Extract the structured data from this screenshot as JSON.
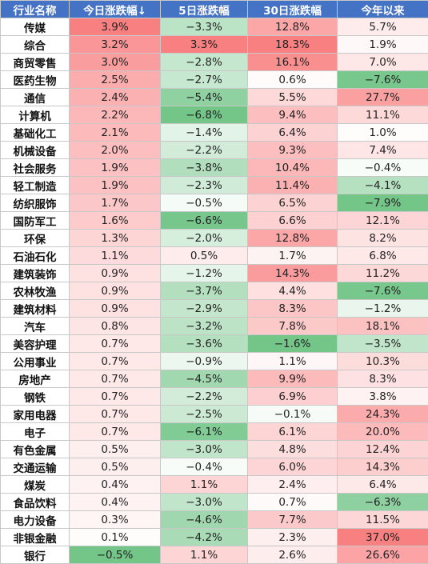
{
  "headers": [
    "行业名称",
    "今日涨跌幅↓",
    "5日涨跌幅",
    "30日涨跌幅",
    "今年以来"
  ],
  "rows": [
    [
      "传媒",
      "3.9%",
      "−3.3%",
      "12.8%",
      "5.7%"
    ],
    [
      "综合",
      "3.2%",
      "3.3%",
      "18.3%",
      "1.9%"
    ],
    [
      "商贸零售",
      "3.0%",
      "−2.8%",
      "16.1%",
      "7.0%"
    ],
    [
      "医药生物",
      "2.5%",
      "−2.7%",
      "0.6%",
      "−7.6%"
    ],
    [
      "通信",
      "2.4%",
      "−5.4%",
      "5.5%",
      "27.7%"
    ],
    [
      "计算机",
      "2.2%",
      "−6.8%",
      "9.4%",
      "11.1%"
    ],
    [
      "基础化工",
      "2.1%",
      "−1.4%",
      "6.4%",
      "1.0%"
    ],
    [
      "机械设备",
      "2.0%",
      "−2.2%",
      "9.3%",
      "7.4%"
    ],
    [
      "社会服务",
      "1.9%",
      "−3.8%",
      "10.4%",
      "−0.4%"
    ],
    [
      "轻工制造",
      "1.9%",
      "−2.3%",
      "11.4%",
      "−4.1%"
    ],
    [
      "纺织服饰",
      "1.7%",
      "−0.5%",
      "6.5%",
      "−7.9%"
    ],
    [
      "国防军工",
      "1.6%",
      "−6.6%",
      "6.6%",
      "12.1%"
    ],
    [
      "环保",
      "1.3%",
      "−2.0%",
      "12.8%",
      "8.2%"
    ],
    [
      "石油石化",
      "1.1%",
      "0.5%",
      "1.7%",
      "6.8%"
    ],
    [
      "建筑装饰",
      "0.9%",
      "−1.2%",
      "14.3%",
      "11.2%"
    ],
    [
      "农林牧渔",
      "0.9%",
      "−3.7%",
      "4.4%",
      "−7.6%"
    ],
    [
      "建筑材料",
      "0.9%",
      "−2.9%",
      "8.3%",
      "−1.2%"
    ],
    [
      "汽车",
      "0.8%",
      "−3.2%",
      "7.8%",
      "18.1%"
    ],
    [
      "美容护理",
      "0.7%",
      "−3.6%",
      "−1.6%",
      "−3.5%"
    ],
    [
      "公用事业",
      "0.7%",
      "−0.9%",
      "1.1%",
      "10.3%"
    ],
    [
      "房地产",
      "0.7%",
      "−4.5%",
      "9.9%",
      "8.3%"
    ],
    [
      "钢铁",
      "0.7%",
      "−2.2%",
      "6.9%",
      "3.8%"
    ],
    [
      "家用电器",
      "0.7%",
      "−2.5%",
      "−0.1%",
      "24.3%"
    ],
    [
      "电子",
      "0.7%",
      "−6.1%",
      "6.1%",
      "20.0%"
    ],
    [
      "有色金属",
      "0.5%",
      "−3.0%",
      "4.8%",
      "12.4%"
    ],
    [
      "交通运输",
      "0.5%",
      "−0.4%",
      "6.0%",
      "14.3%"
    ],
    [
      "煤炭",
      "0.4%",
      "1.1%",
      "2.4%",
      "6.4%"
    ],
    [
      "食品饮料",
      "0.4%",
      "−3.0%",
      "0.7%",
      "−6.3%"
    ],
    [
      "电力设备",
      "0.3%",
      "−4.6%",
      "7.7%",
      "11.5%"
    ],
    [
      "非银金融",
      "0.1%",
      "−4.2%",
      "2.3%",
      "37.0%"
    ],
    [
      "银行",
      "−0.5%",
      "1.1%",
      "2.6%",
      "26.6%"
    ]
  ],
  "colors": {
    "header_bg": "#4472c4",
    "positive": "#f8696b",
    "negative": "#63be7b",
    "neutral": "#ffffff"
  }
}
